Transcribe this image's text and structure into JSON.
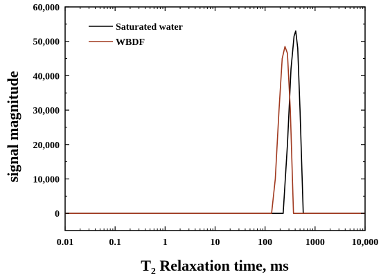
{
  "chart_data": {
    "type": "line",
    "title": "",
    "xlabel_main": "T",
    "xlabel_sub": "2",
    "xlabel_rest": " Relaxation time, ms",
    "ylabel": "signal magnitude",
    "x_scale": "log",
    "xlim": [
      0.01,
      10000
    ],
    "ylim": [
      -5000,
      60000
    ],
    "x_ticks": [
      0.01,
      0.1,
      1,
      10,
      100,
      1000,
      10000
    ],
    "x_tick_labels": [
      "0.01",
      "0.1",
      "1",
      "10",
      "100",
      "1000",
      "10,000"
    ],
    "y_ticks": [
      0,
      10000,
      20000,
      30000,
      40000,
      50000,
      60000
    ],
    "y_tick_labels": [
      "0",
      "10,000",
      "20,000",
      "30,000",
      "40,000",
      "50,000",
      "60,000"
    ],
    "grid": false,
    "legend_position": "top-left",
    "series": [
      {
        "name": "Saturated water",
        "color": "#000000",
        "points": [
          [
            0.01,
            0
          ],
          [
            230,
            0
          ],
          [
            280,
            20000
          ],
          [
            330,
            42000
          ],
          [
            380,
            51500
          ],
          [
            410,
            53000
          ],
          [
            450,
            48000
          ],
          [
            500,
            30000
          ],
          [
            580,
            0
          ],
          [
            10000,
            0
          ]
        ]
      },
      {
        "name": "WBDF",
        "color": "#a0391f",
        "points": [
          [
            0.01,
            0
          ],
          [
            135,
            0
          ],
          [
            160,
            10000
          ],
          [
            190,
            30000
          ],
          [
            220,
            45000
          ],
          [
            250,
            48500
          ],
          [
            280,
            46500
          ],
          [
            320,
            30000
          ],
          [
            370,
            0
          ],
          [
            10000,
            0
          ]
        ]
      }
    ]
  }
}
